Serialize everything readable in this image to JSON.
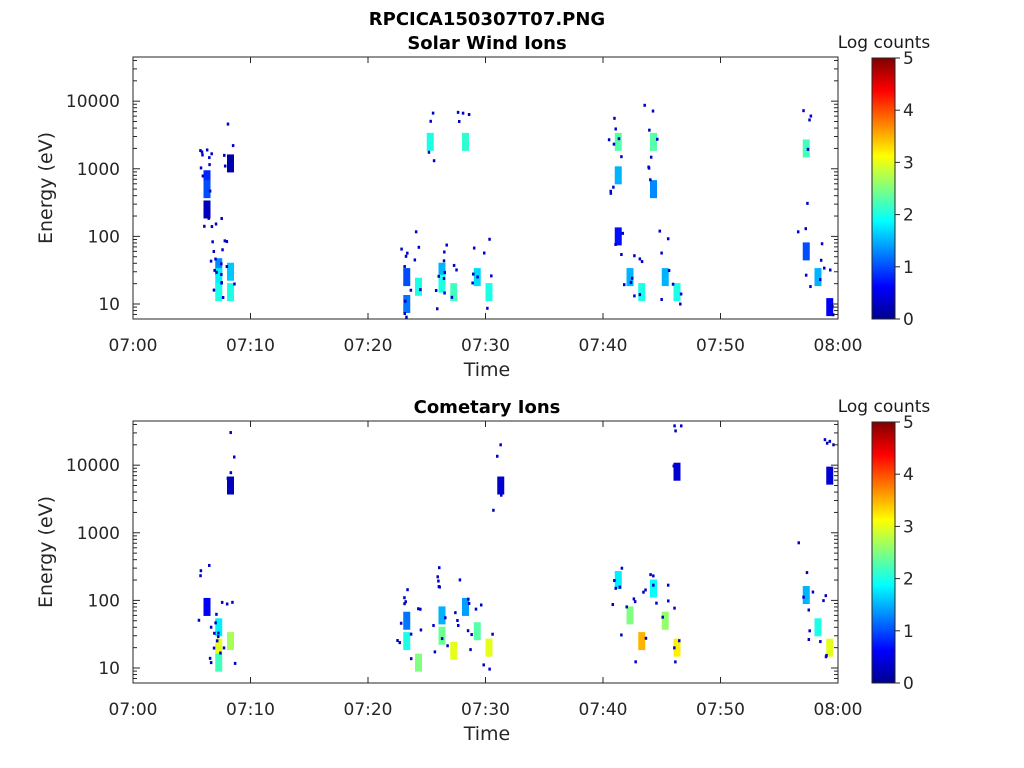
{
  "figure": {
    "title": "RPCICA150307T07.PNG"
  },
  "chart_data": [
    {
      "type": "heatmap",
      "title": "Solar Wind Ions",
      "xlabel": "Time",
      "ylabel": "Energy (eV)",
      "x_ticks": [
        "07:00",
        "07:10",
        "07:20",
        "07:30",
        "07:40",
        "07:50",
        "08:00"
      ],
      "xlim": [
        "07:00",
        "08:00"
      ],
      "y_scale": "log",
      "y_ticks": [
        "10",
        "100",
        "1000",
        "10000"
      ],
      "ylim": [
        6,
        45000
      ],
      "colorbar": {
        "label": "Log counts",
        "ticks": [
          "0",
          "1",
          "2",
          "3",
          "4",
          "5"
        ],
        "range": [
          0,
          5
        ],
        "colormap": "jet"
      },
      "grid": false,
      "cells": [
        {
          "time": "07:06",
          "energy": 700,
          "log_counts": 0.8
        },
        {
          "time": "07:06",
          "energy": 500,
          "log_counts": 1.0
        },
        {
          "time": "07:06",
          "energy": 250,
          "log_counts": 0.3
        },
        {
          "time": "07:07",
          "energy": 35,
          "log_counts": 1.3
        },
        {
          "time": "07:07",
          "energy": 25,
          "log_counts": 1.8
        },
        {
          "time": "07:07",
          "energy": 15,
          "log_counts": 2.0
        },
        {
          "time": "07:08",
          "energy": 30,
          "log_counts": 1.6
        },
        {
          "time": "07:08",
          "energy": 15,
          "log_counts": 2.0
        },
        {
          "time": "07:08",
          "energy": 1200,
          "log_counts": 0.2
        },
        {
          "time": "07:23",
          "energy": 25,
          "log_counts": 1.0
        },
        {
          "time": "07:23",
          "energy": 10,
          "log_counts": 1.2
        },
        {
          "time": "07:24",
          "energy": 18,
          "log_counts": 2.0
        },
        {
          "time": "07:25",
          "energy": 2500,
          "log_counts": 2.0
        },
        {
          "time": "07:26",
          "energy": 30,
          "log_counts": 1.5
        },
        {
          "time": "07:26",
          "energy": 20,
          "log_counts": 2.0
        },
        {
          "time": "07:27",
          "energy": 15,
          "log_counts": 2.2
        },
        {
          "time": "07:28",
          "energy": 2500,
          "log_counts": 2.1
        },
        {
          "time": "07:29",
          "energy": 25,
          "log_counts": 1.7
        },
        {
          "time": "07:30",
          "energy": 15,
          "log_counts": 2.0
        },
        {
          "time": "07:41",
          "energy": 2500,
          "log_counts": 2.3
        },
        {
          "time": "07:41",
          "energy": 800,
          "log_counts": 1.5
        },
        {
          "time": "07:41",
          "energy": 100,
          "log_counts": 0.7
        },
        {
          "time": "07:42",
          "energy": 25,
          "log_counts": 1.5
        },
        {
          "time": "07:43",
          "energy": 15,
          "log_counts": 2.0
        },
        {
          "time": "07:44",
          "energy": 2500,
          "log_counts": 2.3
        },
        {
          "time": "07:44",
          "energy": 500,
          "log_counts": 1.3
        },
        {
          "time": "07:45",
          "energy": 25,
          "log_counts": 1.5
        },
        {
          "time": "07:46",
          "energy": 15,
          "log_counts": 2.0
        },
        {
          "time": "07:57",
          "energy": 2000,
          "log_counts": 2.2
        },
        {
          "time": "07:57",
          "energy": 60,
          "log_counts": 1.0
        },
        {
          "time": "07:58",
          "energy": 25,
          "log_counts": 1.5
        },
        {
          "time": "07:59",
          "energy": 9,
          "log_counts": 0.6
        }
      ]
    },
    {
      "type": "heatmap",
      "title": "Cometary Ions",
      "xlabel": "Time",
      "ylabel": "Energy (eV)",
      "x_ticks": [
        "07:00",
        "07:10",
        "07:20",
        "07:30",
        "07:40",
        "07:50",
        "08:00"
      ],
      "xlim": [
        "07:00",
        "08:00"
      ],
      "y_scale": "log",
      "y_ticks": [
        "10",
        "100",
        "1000",
        "10000"
      ],
      "ylim": [
        6,
        45000
      ],
      "colorbar": {
        "label": "Log counts",
        "ticks": [
          "0",
          "1",
          "2",
          "3",
          "4",
          "5"
        ],
        "range": [
          0,
          5
        ],
        "colormap": "jet"
      },
      "grid": false,
      "cells": [
        {
          "time": "07:06",
          "energy": 80,
          "log_counts": 0.6
        },
        {
          "time": "07:07",
          "energy": 40,
          "log_counts": 1.8
        },
        {
          "time": "07:07",
          "energy": 20,
          "log_counts": 3.0
        },
        {
          "time": "07:07",
          "energy": 12,
          "log_counts": 2.2
        },
        {
          "time": "07:08",
          "energy": 25,
          "log_counts": 2.7
        },
        {
          "time": "07:08",
          "energy": 5000,
          "log_counts": 0.3
        },
        {
          "time": "07:23",
          "energy": 50,
          "log_counts": 1.2
        },
        {
          "time": "07:23",
          "energy": 25,
          "log_counts": 2.0
        },
        {
          "time": "07:24",
          "energy": 12,
          "log_counts": 2.5
        },
        {
          "time": "07:26",
          "energy": 60,
          "log_counts": 1.5
        },
        {
          "time": "07:26",
          "energy": 30,
          "log_counts": 2.4
        },
        {
          "time": "07:27",
          "energy": 18,
          "log_counts": 3.0
        },
        {
          "time": "07:28",
          "energy": 80,
          "log_counts": 1.4
        },
        {
          "time": "07:29",
          "energy": 35,
          "log_counts": 2.3
        },
        {
          "time": "07:30",
          "energy": 20,
          "log_counts": 3.0
        },
        {
          "time": "07:31",
          "energy": 5000,
          "log_counts": 0.4
        },
        {
          "time": "07:41",
          "energy": 200,
          "log_counts": 1.8
        },
        {
          "time": "07:42",
          "energy": 60,
          "log_counts": 2.5
        },
        {
          "time": "07:43",
          "energy": 25,
          "log_counts": 3.5
        },
        {
          "time": "07:44",
          "energy": 150,
          "log_counts": 1.9
        },
        {
          "time": "07:45",
          "energy": 50,
          "log_counts": 2.6
        },
        {
          "time": "07:46",
          "energy": 20,
          "log_counts": 3.2
        },
        {
          "time": "07:46",
          "energy": 8000,
          "log_counts": 0.4
        },
        {
          "time": "07:57",
          "energy": 120,
          "log_counts": 1.5
        },
        {
          "time": "07:58",
          "energy": 40,
          "log_counts": 2.0
        },
        {
          "time": "07:59",
          "energy": 20,
          "log_counts": 3.0
        },
        {
          "time": "07:59",
          "energy": 7000,
          "log_counts": 0.4
        }
      ]
    }
  ],
  "colors": {
    "axis": "#262626",
    "colormap": "jet"
  }
}
